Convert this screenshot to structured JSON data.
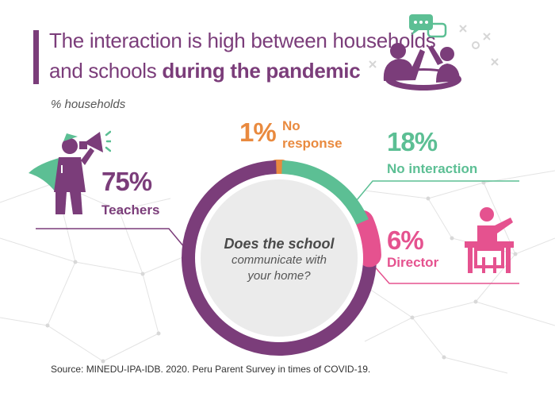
{
  "title": {
    "line1": "The interaction is high between households",
    "line2_regular": "and schools ",
    "line2_bold": "during the pandemic"
  },
  "subtitle": "% households",
  "center": {
    "question": "Does the school",
    "line2": "communicate with",
    "line3": "your home?"
  },
  "source": "Source: MINEDU-IPA-IDB. 2020. Peru Parent Survey in times of COVID-19.",
  "colors": {
    "teachers": "#7b3d7a",
    "no_interaction": "#5cbf94",
    "director": "#e5528f",
    "no_response": "#e98a3f",
    "title": "#7b3d7a"
  },
  "chart_data": {
    "type": "pie",
    "title": "Does the school communicate with your home?",
    "unit": "% households",
    "categories": [
      "Teachers",
      "No interaction",
      "Director",
      "No response"
    ],
    "values": [
      75,
      18,
      6,
      1
    ],
    "labels": {
      "teachers_pct": "75%",
      "teachers_name": "Teachers",
      "no_interaction_pct": "18%",
      "no_interaction_name": "No interaction",
      "director_pct": "6%",
      "director_name": "Director",
      "no_response_pct": "1%",
      "no_response_line1": "No",
      "no_response_line2": "response"
    }
  },
  "icons": {
    "teacher": "teacher-megaphone-icon",
    "meeting": "meeting-chat-icon",
    "director": "director-desk-icon"
  }
}
